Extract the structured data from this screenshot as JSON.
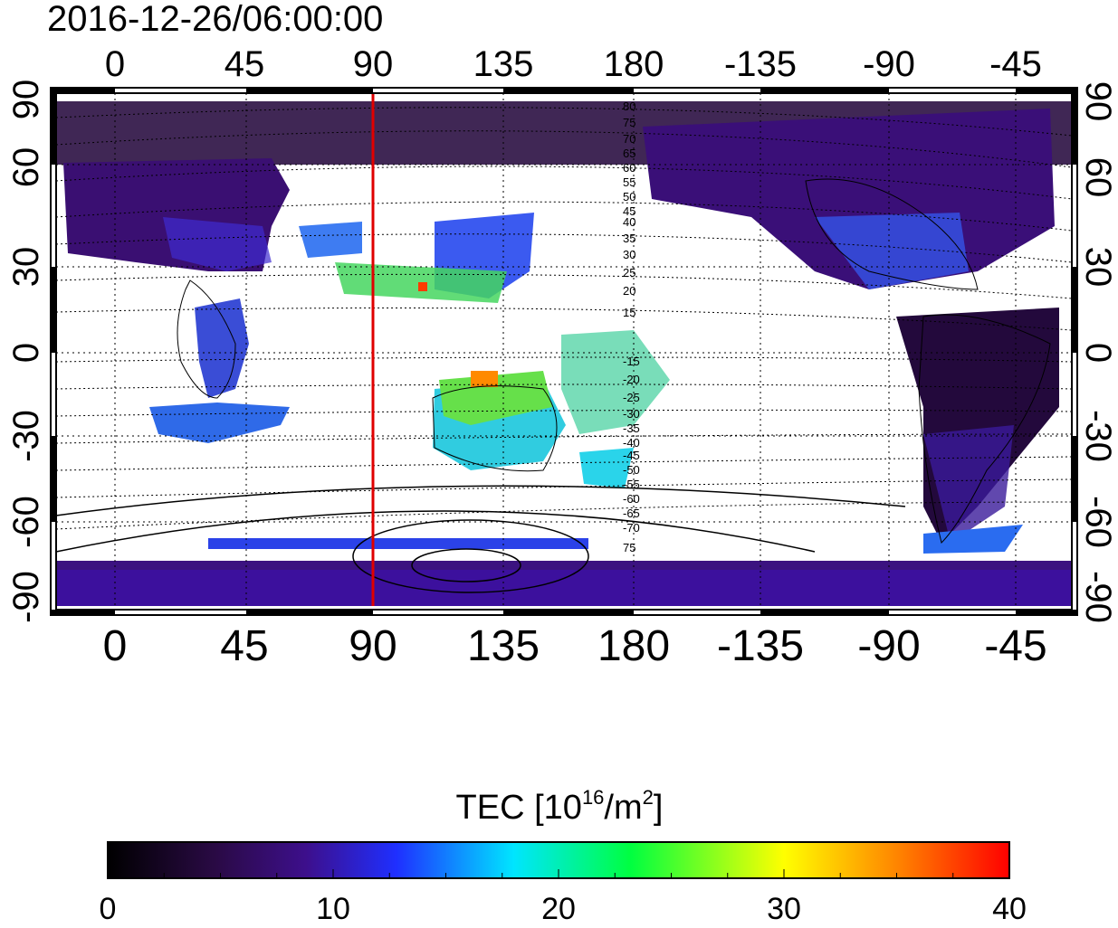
{
  "title": "2016-12-26/06:00:00",
  "map": {
    "top_lon_labels": [
      "0",
      "45",
      "90",
      "135",
      "180",
      "-135",
      "-90",
      "-45"
    ],
    "bottom_lon_labels": [
      "0",
      "45",
      "90",
      "135",
      "180",
      "-135",
      "-90",
      "-45"
    ],
    "left_lat_labels": [
      "90",
      "60",
      "30",
      "0",
      "-30",
      "-60",
      "-90"
    ],
    "right_lat_labels": [
      "90",
      "60",
      "30",
      "0",
      "-30",
      "-60",
      "-90"
    ],
    "lon_ticks": [
      0,
      45,
      90,
      135,
      180,
      225,
      270,
      315
    ],
    "lat_ticks": [
      90,
      60,
      30,
      0,
      -30,
      -60,
      -90
    ],
    "meridian_marker_lon": 90,
    "meridian_marker_color": "#e00000",
    "contour_labels_north": [
      "80",
      "75",
      "70",
      "65",
      "60",
      "55",
      "50",
      "45",
      "40",
      "35",
      "30",
      "25",
      "20",
      "15"
    ],
    "contour_labels_south": [
      "-15",
      "-20",
      "-25",
      "-30",
      "-35",
      "-40",
      "-45",
      "-50",
      "-55",
      "-60",
      "-65",
      "-70",
      "75"
    ]
  },
  "colorbar": {
    "label_prefix": "TEC  [10",
    "label_sup1": "16",
    "label_mid": "/m",
    "label_sup2": "2",
    "label_suffix": "]",
    "min": 0,
    "max": 40,
    "tick_values": [
      0,
      10,
      20,
      30,
      40
    ],
    "tick_labels": [
      "0",
      "10",
      "20",
      "30",
      "40"
    ],
    "colors": [
      "#000000",
      "#2a0a45",
      "#3d0f8c",
      "#1f2fff",
      "#00e5ff",
      "#00ff40",
      "#ffff00",
      "#ff8000",
      "#ff0000"
    ]
  }
}
